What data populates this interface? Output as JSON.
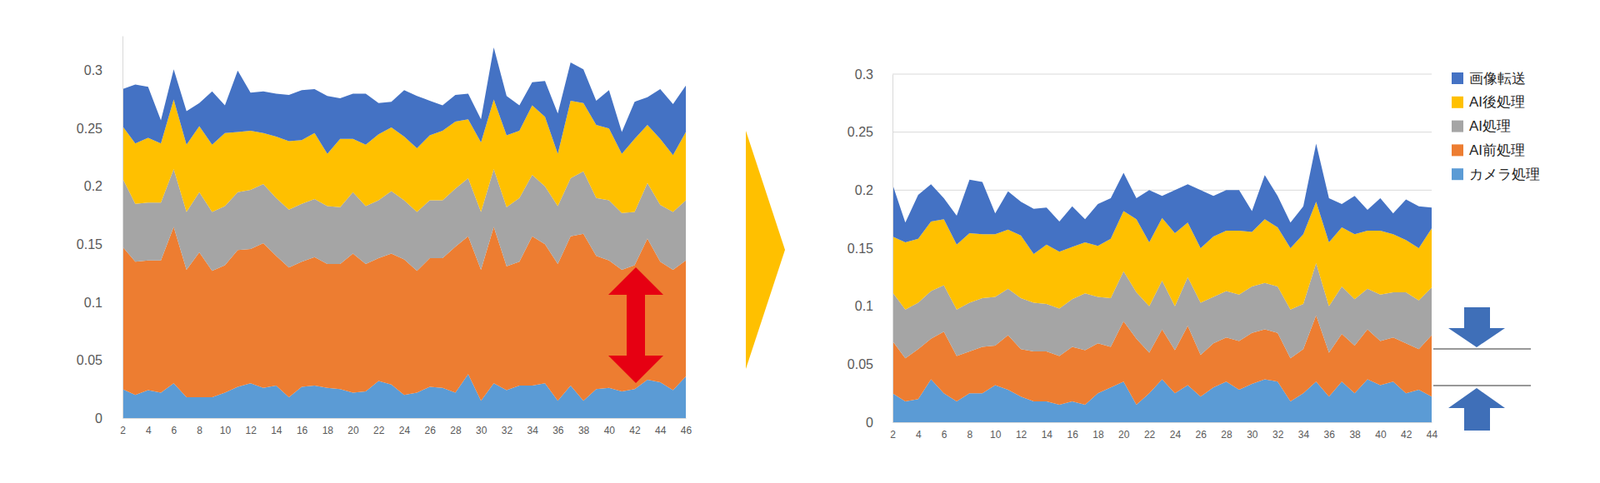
{
  "chart_data": [
    {
      "type": "area",
      "stacked": true,
      "grid": false,
      "x": [
        2,
        3,
        4,
        5,
        6,
        7,
        8,
        9,
        10,
        11,
        12,
        13,
        14,
        15,
        16,
        17,
        18,
        19,
        20,
        21,
        22,
        23,
        24,
        25,
        26,
        27,
        28,
        29,
        30,
        31,
        32,
        33,
        34,
        35,
        36,
        37,
        38,
        39,
        40,
        41,
        42,
        43,
        44,
        45,
        46
      ],
      "xlim": [
        2,
        46
      ],
      "xticks": [
        2,
        4,
        6,
        8,
        10,
        12,
        14,
        16,
        18,
        20,
        22,
        24,
        26,
        28,
        30,
        32,
        34,
        36,
        38,
        40,
        42,
        44,
        46
      ],
      "ylim": [
        0,
        0.33
      ],
      "yticks": [
        0,
        0.05,
        0.1,
        0.15,
        0.2,
        0.25,
        0.3
      ],
      "series": [
        {
          "name": "カメラ処理",
          "color": "#5b9bd5",
          "values": [
            0.025,
            0.02,
            0.024,
            0.022,
            0.03,
            0.018,
            0.018,
            0.018,
            0.022,
            0.027,
            0.03,
            0.026,
            0.028,
            0.018,
            0.027,
            0.028,
            0.026,
            0.025,
            0.022,
            0.023,
            0.032,
            0.029,
            0.02,
            0.022,
            0.027,
            0.026,
            0.022,
            0.038,
            0.015,
            0.03,
            0.024,
            0.028,
            0.028,
            0.03,
            0.015,
            0.028,
            0.015,
            0.025,
            0.026,
            0.023,
            0.025,
            0.033,
            0.031,
            0.024,
            0.036
          ]
        },
        {
          "name": "AI前処理",
          "color": "#ed7d31",
          "values": [
            0.123,
            0.115,
            0.112,
            0.114,
            0.135,
            0.11,
            0.125,
            0.109,
            0.11,
            0.118,
            0.116,
            0.125,
            0.112,
            0.112,
            0.108,
            0.111,
            0.107,
            0.108,
            0.12,
            0.11,
            0.106,
            0.113,
            0.117,
            0.105,
            0.111,
            0.112,
            0.126,
            0.119,
            0.113,
            0.135,
            0.107,
            0.107,
            0.129,
            0.12,
            0.118,
            0.129,
            0.144,
            0.115,
            0.11,
            0.105,
            0.107,
            0.122,
            0.104,
            0.104,
            0.1
          ]
        },
        {
          "name": "AI処理",
          "color": "#a5a5a5",
          "values": [
            0.059,
            0.05,
            0.05,
            0.05,
            0.05,
            0.05,
            0.052,
            0.051,
            0.051,
            0.05,
            0.051,
            0.051,
            0.05,
            0.05,
            0.05,
            0.05,
            0.05,
            0.049,
            0.053,
            0.05,
            0.05,
            0.054,
            0.051,
            0.051,
            0.05,
            0.05,
            0.05,
            0.05,
            0.05,
            0.05,
            0.051,
            0.055,
            0.053,
            0.05,
            0.05,
            0.05,
            0.054,
            0.05,
            0.052,
            0.049,
            0.046,
            0.048,
            0.049,
            0.05,
            0.052
          ]
        },
        {
          "name": "AI後処理",
          "color": "#ffc000",
          "values": [
            0.045,
            0.052,
            0.056,
            0.051,
            0.06,
            0.058,
            0.057,
            0.058,
            0.063,
            0.052,
            0.051,
            0.044,
            0.053,
            0.059,
            0.055,
            0.057,
            0.045,
            0.059,
            0.046,
            0.053,
            0.057,
            0.055,
            0.055,
            0.055,
            0.056,
            0.06,
            0.058,
            0.051,
            0.06,
            0.06,
            0.062,
            0.058,
            0.06,
            0.06,
            0.045,
            0.067,
            0.059,
            0.063,
            0.062,
            0.051,
            0.063,
            0.05,
            0.057,
            0.049,
            0.059
          ]
        },
        {
          "name": "画像転送",
          "color": "#4472c4",
          "values": [
            0.032,
            0.051,
            0.044,
            0.02,
            0.026,
            0.029,
            0.02,
            0.046,
            0.024,
            0.053,
            0.033,
            0.036,
            0.037,
            0.04,
            0.043,
            0.038,
            0.05,
            0.035,
            0.039,
            0.044,
            0.027,
            0.022,
            0.04,
            0.045,
            0.03,
            0.022,
            0.023,
            0.022,
            0.02,
            0.045,
            0.034,
            0.022,
            0.02,
            0.031,
            0.035,
            0.033,
            0.029,
            0.021,
            0.033,
            0.019,
            0.032,
            0.024,
            0.043,
            0.044,
            0.04
          ]
        }
      ]
    },
    {
      "type": "area",
      "stacked": true,
      "grid": true,
      "legend": "right",
      "x": [
        2,
        3,
        4,
        5,
        6,
        7,
        8,
        9,
        10,
        11,
        12,
        13,
        14,
        15,
        16,
        17,
        18,
        19,
        20,
        21,
        22,
        23,
        24,
        25,
        26,
        27,
        28,
        29,
        30,
        31,
        32,
        33,
        34,
        35,
        36,
        37,
        38,
        39,
        40,
        41,
        42,
        43,
        44
      ],
      "xlim": [
        2,
        44
      ],
      "xticks": [
        2,
        4,
        6,
        8,
        10,
        12,
        14,
        16,
        18,
        20,
        22,
        24,
        26,
        28,
        30,
        32,
        34,
        36,
        38,
        40,
        42,
        44
      ],
      "ylim": [
        0,
        0.3
      ],
      "yticks": [
        0,
        0.05,
        0.1,
        0.15,
        0.2,
        0.25,
        0.3
      ],
      "series": [
        {
          "name": "カメラ処理",
          "color": "#5b9bd5",
          "values": [
            0.025,
            0.018,
            0.02,
            0.037,
            0.025,
            0.018,
            0.025,
            0.025,
            0.032,
            0.028,
            0.022,
            0.018,
            0.018,
            0.015,
            0.018,
            0.015,
            0.025,
            0.03,
            0.035,
            0.015,
            0.025,
            0.037,
            0.025,
            0.032,
            0.022,
            0.03,
            0.035,
            0.028,
            0.033,
            0.037,
            0.035,
            0.018,
            0.025,
            0.035,
            0.022,
            0.035,
            0.025,
            0.037,
            0.032,
            0.035,
            0.025,
            0.028,
            0.022
          ]
        },
        {
          "name": "AI前処理",
          "color": "#ed7d31",
          "values": [
            0.045,
            0.037,
            0.043,
            0.035,
            0.053,
            0.039,
            0.036,
            0.04,
            0.034,
            0.047,
            0.041,
            0.043,
            0.043,
            0.042,
            0.047,
            0.047,
            0.043,
            0.035,
            0.052,
            0.057,
            0.035,
            0.043,
            0.037,
            0.051,
            0.036,
            0.038,
            0.038,
            0.042,
            0.044,
            0.043,
            0.042,
            0.037,
            0.038,
            0.057,
            0.038,
            0.041,
            0.041,
            0.043,
            0.038,
            0.038,
            0.043,
            0.035,
            0.053
          ]
        },
        {
          "name": "AI処理",
          "color": "#a5a5a5",
          "values": [
            0.042,
            0.042,
            0.04,
            0.041,
            0.04,
            0.04,
            0.042,
            0.042,
            0.042,
            0.04,
            0.044,
            0.042,
            0.041,
            0.041,
            0.041,
            0.049,
            0.04,
            0.042,
            0.043,
            0.04,
            0.04,
            0.042,
            0.038,
            0.042,
            0.045,
            0.04,
            0.04,
            0.04,
            0.04,
            0.04,
            0.04,
            0.042,
            0.039,
            0.045,
            0.04,
            0.041,
            0.04,
            0.035,
            0.04,
            0.039,
            0.044,
            0.042,
            0.041
          ]
        },
        {
          "name": "AI後処理",
          "color": "#ffc000",
          "values": [
            0.048,
            0.058,
            0.055,
            0.06,
            0.057,
            0.056,
            0.06,
            0.055,
            0.054,
            0.051,
            0.054,
            0.042,
            0.051,
            0.049,
            0.045,
            0.044,
            0.044,
            0.051,
            0.052,
            0.063,
            0.055,
            0.054,
            0.063,
            0.047,
            0.047,
            0.052,
            0.052,
            0.055,
            0.047,
            0.055,
            0.051,
            0.053,
            0.06,
            0.053,
            0.055,
            0.051,
            0.056,
            0.05,
            0.055,
            0.05,
            0.045,
            0.045,
            0.051
          ]
        },
        {
          "name": "画像転送",
          "color": "#4472c4",
          "values": [
            0.045,
            0.017,
            0.038,
            0.032,
            0.018,
            0.025,
            0.046,
            0.045,
            0.018,
            0.033,
            0.029,
            0.039,
            0.032,
            0.026,
            0.035,
            0.02,
            0.036,
            0.035,
            0.033,
            0.018,
            0.045,
            0.019,
            0.037,
            0.033,
            0.05,
            0.035,
            0.035,
            0.035,
            0.018,
            0.038,
            0.027,
            0.022,
            0.024,
            0.05,
            0.038,
            0.02,
            0.033,
            0.018,
            0.028,
            0.018,
            0.035,
            0.036,
            0.018
          ]
        }
      ]
    }
  ]
}
